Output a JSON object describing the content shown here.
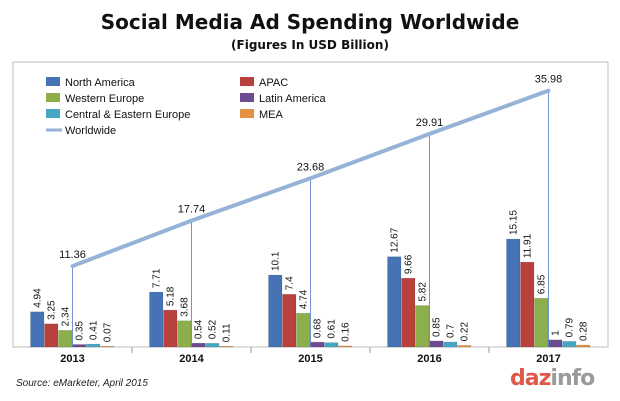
{
  "title": "Social Media Ad Spending Worldwide",
  "subtitle": "(Figures In USD Billion)",
  "source": "Source:  eMarketer, April 2015",
  "brand": {
    "part1": "daz",
    "part2": "info"
  },
  "colors": {
    "North America": "#4673b5",
    "APAC": "#b9413d",
    "Western Europe": "#8cae4b",
    "Latin America": "#6d4b91",
    "Central & Eastern Europe": "#45a7c4",
    "MEA": "#e39142",
    "Worldwide": "#95b3d7"
  },
  "chart_data": {
    "type": "bar",
    "categories": [
      "2013",
      "2014",
      "2015",
      "2016",
      "2017"
    ],
    "ylim": [
      0,
      40
    ],
    "grid": false,
    "legend_position": "top-left",
    "series": [
      {
        "name": "North America",
        "values": [
          4.94,
          7.71,
          10.1,
          12.67,
          15.15
        ]
      },
      {
        "name": "APAC",
        "values": [
          3.25,
          5.18,
          7.4,
          9.66,
          11.91
        ]
      },
      {
        "name": "Western Europe",
        "values": [
          2.34,
          3.68,
          4.74,
          5.82,
          6.85
        ]
      },
      {
        "name": "Latin America",
        "values": [
          0.35,
          0.54,
          0.68,
          0.85,
          1
        ]
      },
      {
        "name": "Central & Eastern Europe",
        "values": [
          0.41,
          0.52,
          0.61,
          0.7,
          0.79
        ]
      },
      {
        "name": "MEA",
        "values": [
          0.07,
          0.11,
          0.16,
          0.22,
          0.28
        ]
      }
    ],
    "line_series": {
      "name": "Worldwide",
      "type": "line",
      "values": [
        11.36,
        17.74,
        23.68,
        29.91,
        35.98
      ]
    }
  }
}
